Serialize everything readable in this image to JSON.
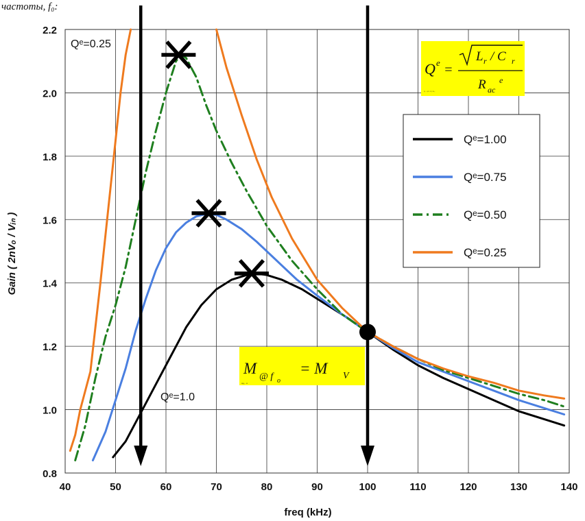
{
  "header_fragment": "частоты, f₀:",
  "colors": {
    "q100": "#000000",
    "q075": "#4a7fe0",
    "q050": "#1f7f1f",
    "q025": "#ef7a1e",
    "highlight": "#ffff00"
  },
  "chart_data": {
    "type": "line",
    "xlabel": "freq (kHz)",
    "ylabel": "Gain ( 2nVₒ / Vᵢₙ )",
    "xlim": [
      40,
      140
    ],
    "ylim": [
      0.8,
      2.2
    ],
    "x_ticks": [
      40,
      50,
      60,
      70,
      80,
      90,
      100,
      110,
      120,
      130,
      140
    ],
    "y_ticks": [
      0.8,
      1.0,
      1.2,
      1.4,
      1.6,
      1.8,
      2.0,
      2.2
    ],
    "y_tick_labels": [
      "0.8",
      "1.0",
      "1.2",
      "1.4",
      "1.6",
      "1.8",
      "2.0",
      "2.2"
    ],
    "grid": true,
    "legend_position": "right",
    "series": [
      {
        "name": "Qᵉ=1.00",
        "color": "#000000",
        "dash": "solid",
        "points": [
          [
            49.5,
            0.85
          ],
          [
            52,
            0.9
          ],
          [
            55,
            0.99
          ],
          [
            58,
            1.08
          ],
          [
            61,
            1.17
          ],
          [
            64,
            1.26
          ],
          [
            67,
            1.33
          ],
          [
            70,
            1.38
          ],
          [
            73,
            1.41
          ],
          [
            76,
            1.425
          ],
          [
            78,
            1.43
          ],
          [
            80,
            1.425
          ],
          [
            83,
            1.41
          ],
          [
            87,
            1.38
          ],
          [
            92,
            1.33
          ],
          [
            96,
            1.29
          ],
          [
            100,
            1.245
          ],
          [
            105,
            1.19
          ],
          [
            110,
            1.14
          ],
          [
            115,
            1.1
          ],
          [
            120,
            1.065
          ],
          [
            125,
            1.03
          ],
          [
            130,
            0.995
          ],
          [
            135,
            0.97
          ],
          [
            139,
            0.95
          ]
        ]
      },
      {
        "name": "Qᵉ=0.75",
        "color": "#4a7fe0",
        "dash": "solid",
        "points": [
          [
            45.5,
            0.84
          ],
          [
            48,
            0.93
          ],
          [
            50,
            1.03
          ],
          [
            52,
            1.13
          ],
          [
            54,
            1.25
          ],
          [
            56,
            1.35
          ],
          [
            58,
            1.44
          ],
          [
            60,
            1.51
          ],
          [
            62,
            1.56
          ],
          [
            64,
            1.59
          ],
          [
            66,
            1.61
          ],
          [
            68,
            1.618
          ],
          [
            70,
            1.615
          ],
          [
            72,
            1.6
          ],
          [
            75,
            1.57
          ],
          [
            78,
            1.53
          ],
          [
            82,
            1.47
          ],
          [
            86,
            1.41
          ],
          [
            90,
            1.36
          ],
          [
            95,
            1.3
          ],
          [
            100,
            1.245
          ],
          [
            105,
            1.195
          ],
          [
            110,
            1.15
          ],
          [
            115,
            1.12
          ],
          [
            120,
            1.09
          ],
          [
            125,
            1.06
          ],
          [
            130,
            1.03
          ],
          [
            135,
            1.005
          ],
          [
            139,
            0.985
          ]
        ]
      },
      {
        "name": "Qᵉ=0.50",
        "color": "#1f7f1f",
        "dash": "dashdot",
        "points": [
          [
            42,
            0.84
          ],
          [
            44,
            0.95
          ],
          [
            46,
            1.1
          ],
          [
            48,
            1.23
          ],
          [
            50,
            1.33
          ],
          [
            52,
            1.45
          ],
          [
            54,
            1.6
          ],
          [
            56,
            1.75
          ],
          [
            58,
            1.88
          ],
          [
            60,
            2.0
          ],
          [
            61,
            2.05
          ],
          [
            62,
            2.1
          ],
          [
            63,
            2.12
          ],
          [
            64,
            2.11
          ],
          [
            66,
            2.05
          ],
          [
            68,
            1.96
          ],
          [
            70,
            1.88
          ],
          [
            73,
            1.78
          ],
          [
            76,
            1.69
          ],
          [
            80,
            1.58
          ],
          [
            85,
            1.47
          ],
          [
            90,
            1.38
          ],
          [
            95,
            1.3
          ],
          [
            100,
            1.245
          ],
          [
            105,
            1.2
          ],
          [
            110,
            1.16
          ],
          [
            115,
            1.125
          ],
          [
            120,
            1.1
          ],
          [
            125,
            1.075
          ],
          [
            130,
            1.05
          ],
          [
            135,
            1.03
          ],
          [
            139,
            1.01
          ]
        ]
      },
      {
        "name": "Qᵉ=0.25",
        "color": "#ef7a1e",
        "dash": "solid",
        "points": [
          [
            41,
            0.87
          ],
          [
            42,
            0.92
          ],
          [
            43,
            1.0
          ],
          [
            45,
            1.12
          ],
          [
            47,
            1.4
          ],
          [
            49,
            1.7
          ],
          [
            50,
            1.85
          ],
          [
            51,
            2.0
          ],
          [
            52,
            2.12
          ],
          [
            53,
            2.2
          ]
        ]
      },
      {
        "name": "",
        "color": "#ef7a1e",
        "dash": "solid",
        "points": [
          [
            70,
            2.2
          ],
          [
            72,
            2.08
          ],
          [
            75,
            1.93
          ],
          [
            78,
            1.79
          ],
          [
            81,
            1.67
          ],
          [
            85,
            1.54
          ],
          [
            90,
            1.41
          ],
          [
            95,
            1.32
          ],
          [
            100,
            1.245
          ],
          [
            105,
            1.2
          ],
          [
            110,
            1.16
          ],
          [
            115,
            1.13
          ],
          [
            120,
            1.105
          ],
          [
            125,
            1.085
          ],
          [
            130,
            1.06
          ],
          [
            135,
            1.045
          ],
          [
            139,
            1.035
          ]
        ]
      }
    ],
    "markers": [
      {
        "type": "star",
        "x": 62.5,
        "y": 2.12
      },
      {
        "type": "star",
        "x": 68.5,
        "y": 1.62
      },
      {
        "type": "star",
        "x": 77,
        "y": 1.43
      },
      {
        "type": "dot",
        "x": 100,
        "y": 1.245
      }
    ],
    "arrows": [
      {
        "x": 55,
        "direction": "down"
      },
      {
        "x": 100,
        "direction": "down"
      }
    ],
    "annotations": {
      "q025_label": "Qᵉ=0.25",
      "q100_label": "Qᵉ=1.0",
      "formula_q": "Qᵉ = √(Lᵣ / Cᵣ) / Rₐ꜀ᵉ",
      "formula_m": "M@f₀ = Mᵥ"
    }
  },
  "legend": {
    "items": [
      {
        "label": "Qᵉ=1.00",
        "color": "#000000",
        "dash": "solid"
      },
      {
        "label": "Qᵉ=0.75",
        "color": "#4a7fe0",
        "dash": "solid"
      },
      {
        "label": "Qᵉ=0.50",
        "color": "#1f7f1f",
        "dash": "dashdot"
      },
      {
        "label": "Qᵉ=0.25",
        "color": "#ef7a1e",
        "dash": "solid"
      }
    ]
  }
}
